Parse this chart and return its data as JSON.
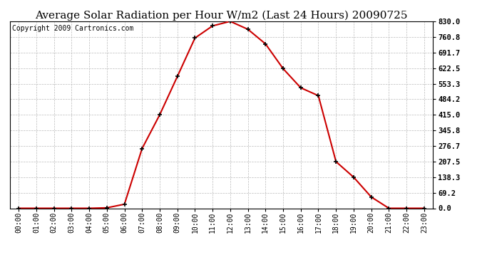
{
  "title": "Average Solar Radiation per Hour W/m2 (Last 24 Hours) 20090725",
  "copyright": "Copyright 2009 Cartronics.com",
  "hours": [
    "00:00",
    "01:00",
    "02:00",
    "03:00",
    "04:00",
    "05:00",
    "06:00",
    "07:00",
    "08:00",
    "09:00",
    "10:00",
    "11:00",
    "12:00",
    "13:00",
    "14:00",
    "15:00",
    "16:00",
    "17:00",
    "18:00",
    "19:00",
    "20:00",
    "21:00",
    "22:00",
    "23:00"
  ],
  "values": [
    0.0,
    0.0,
    0.0,
    0.0,
    0.0,
    2.0,
    18.0,
    265.0,
    415.0,
    585.0,
    756.0,
    810.0,
    830.0,
    795.0,
    730.0,
    620.0,
    535.0,
    500.0,
    207.0,
    138.0,
    50.0,
    0.0,
    0.0,
    0.0
  ],
  "line_color": "#cc0000",
  "marker_color": "#000000",
  "background_color": "#ffffff",
  "grid_color": "#bbbbbb",
  "yticks": [
    0.0,
    69.2,
    138.3,
    207.5,
    276.7,
    345.8,
    415.0,
    484.2,
    553.3,
    622.5,
    691.7,
    760.8,
    830.0
  ],
  "ylim": [
    0.0,
    830.0
  ],
  "title_fontsize": 11,
  "copyright_fontsize": 7
}
